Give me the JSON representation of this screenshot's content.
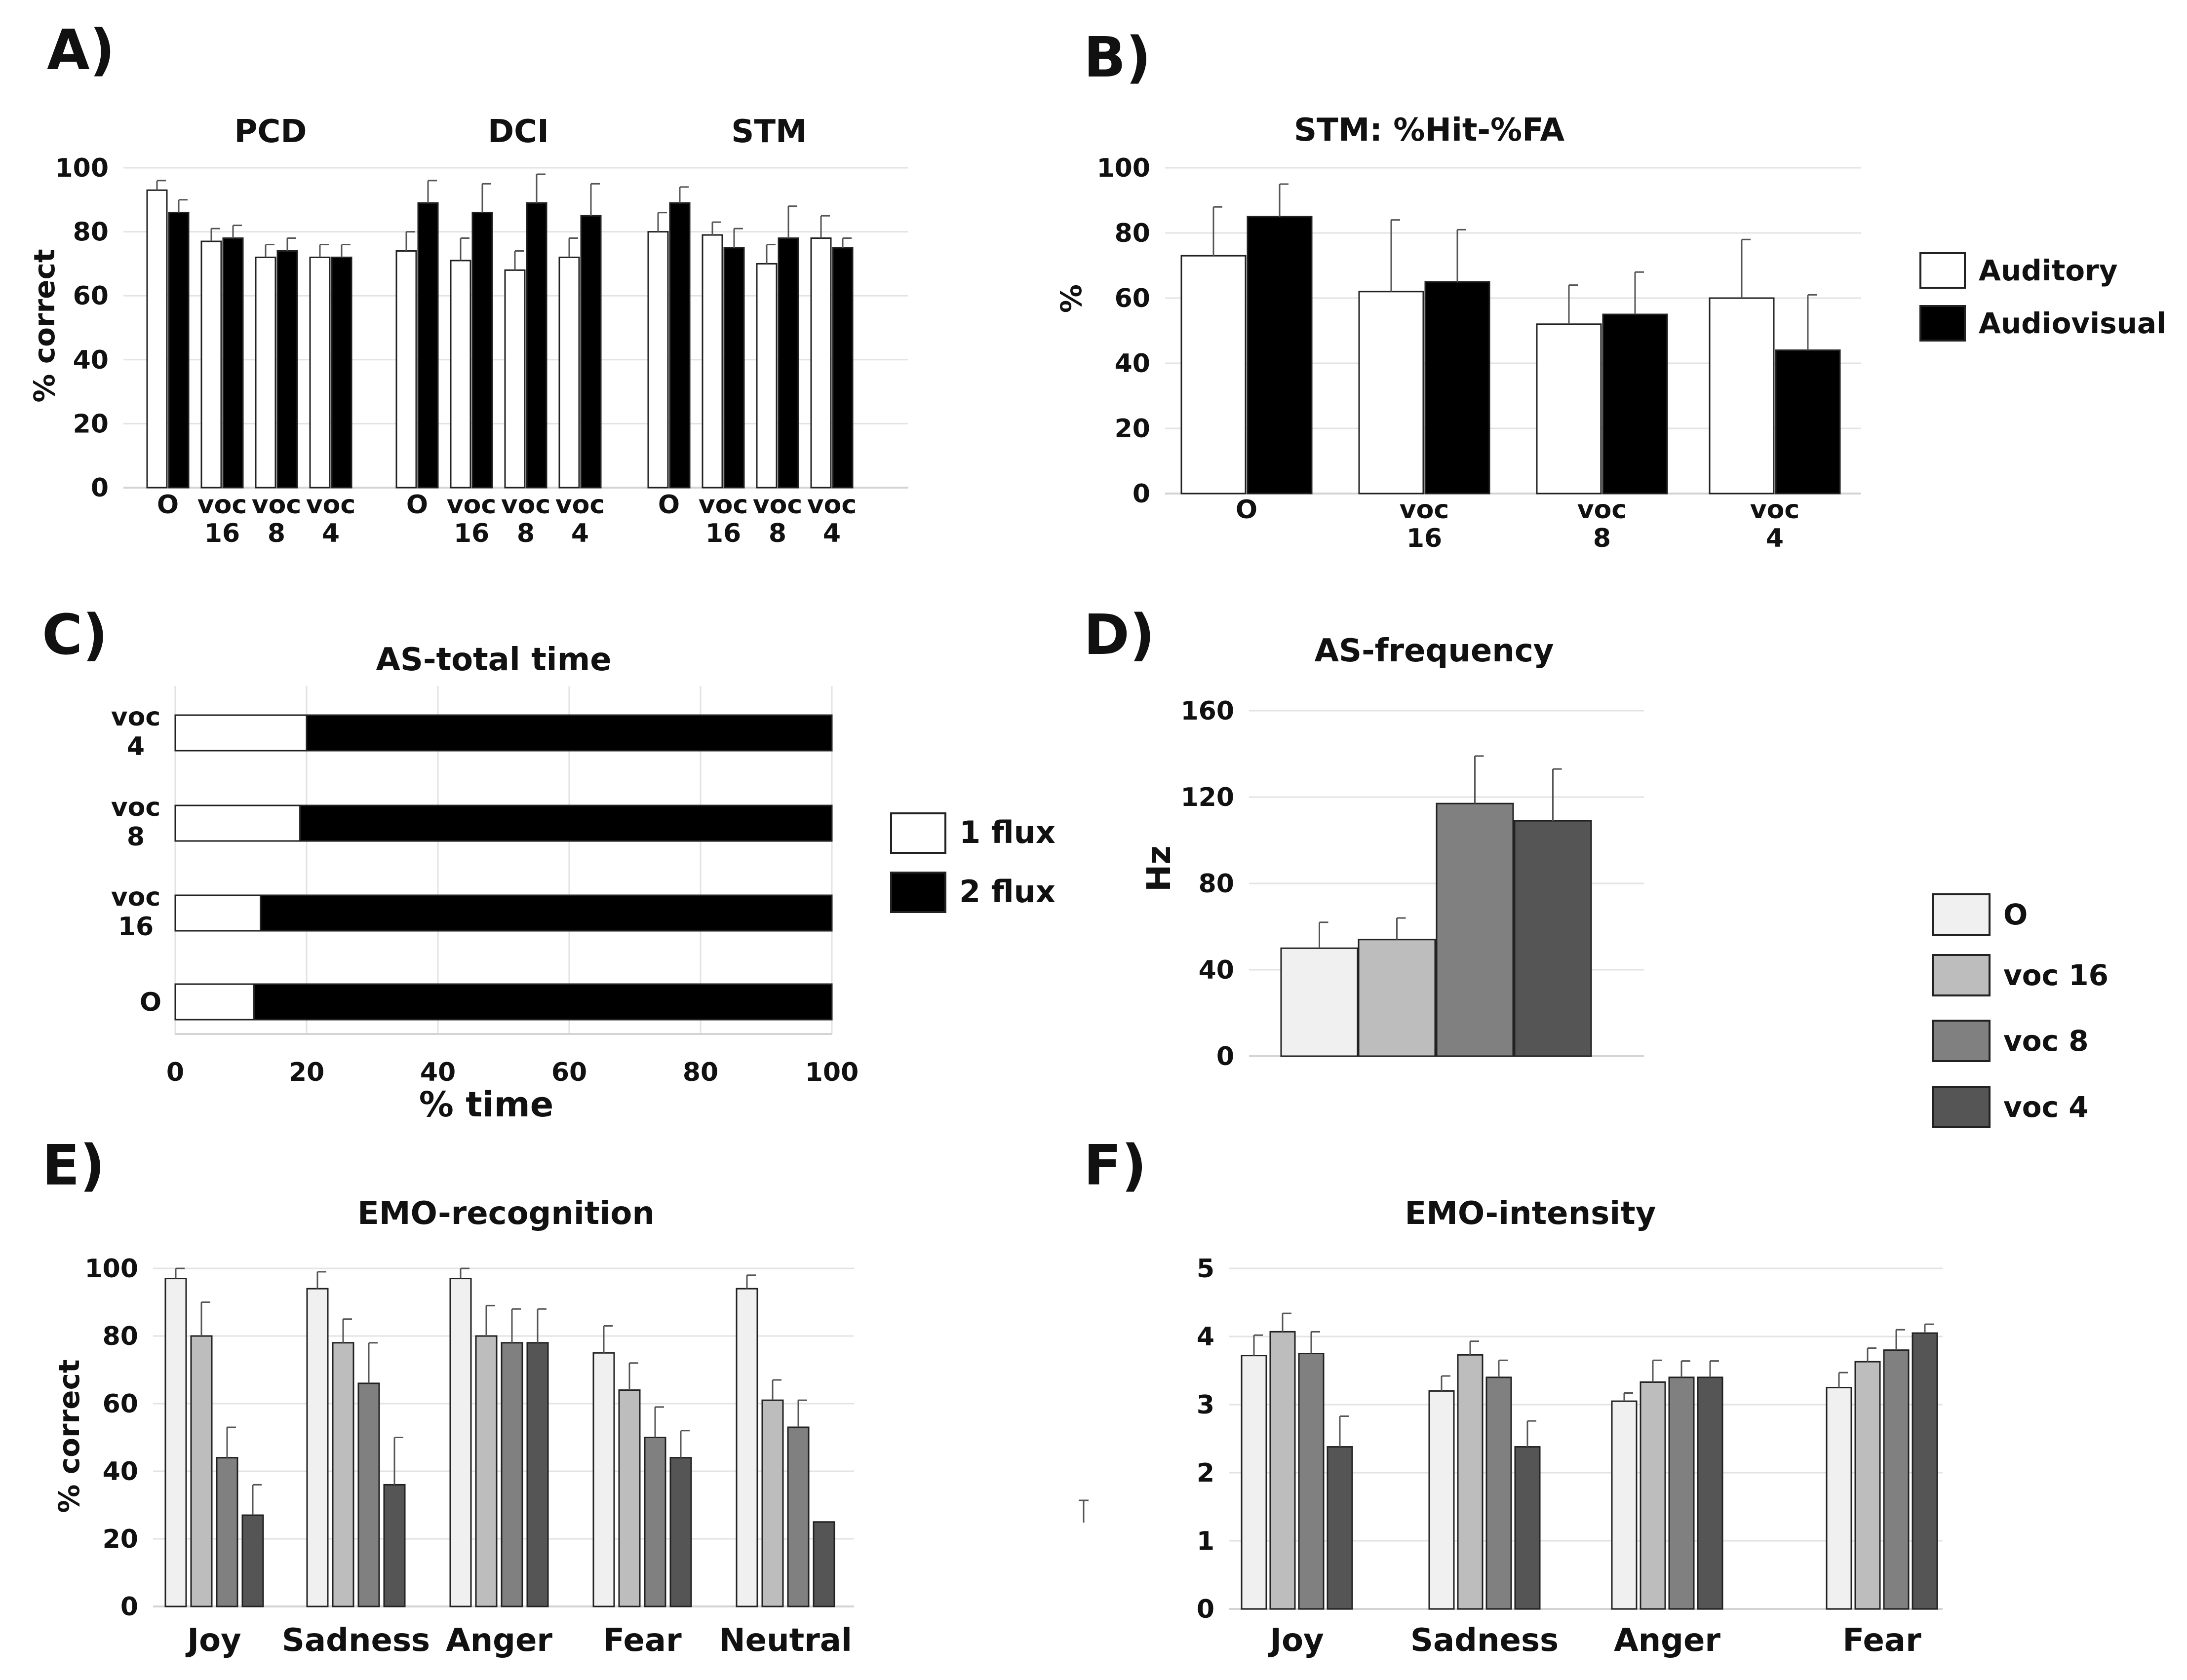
{
  "panels": {
    "A": {
      "label": "A)",
      "chart_data": {
        "type": "bar",
        "groups": [
          "PCD",
          "DCI",
          "STM"
        ],
        "categories": [
          "O",
          "voc 16",
          "voc 8",
          "voc 4"
        ],
        "ylabel": "% correct",
        "ylim": [
          0,
          100
        ],
        "yticks": [
          0,
          20,
          40,
          60,
          80,
          100
        ],
        "grid": true,
        "series": [
          {
            "name": "Auditory",
            "color": "#ffffff",
            "values": [
              [
                93,
                77,
                72,
                72
              ],
              [
                74,
                71,
                68,
                72
              ],
              [
                80,
                79,
                70,
                78
              ]
            ],
            "errors": [
              [
                3,
                4,
                4,
                4
              ],
              [
                6,
                7,
                6,
                6
              ],
              [
                6,
                4,
                6,
                7
              ]
            ]
          },
          {
            "name": "Audiovisual",
            "color": "#000000",
            "values": [
              [
                86,
                78,
                74,
                72
              ],
              [
                89,
                86,
                89,
                85
              ],
              [
                89,
                75,
                78,
                75
              ]
            ],
            "errors": [
              [
                4,
                4,
                4,
                4
              ],
              [
                7,
                9,
                9,
                10
              ],
              [
                5,
                6,
                10,
                3
              ]
            ]
          }
        ]
      }
    },
    "B": {
      "label": "B)",
      "chart_data": {
        "type": "bar",
        "title": "STM: %Hit-%FA",
        "categories": [
          "O",
          "voc 16",
          "voc 8",
          "voc 4"
        ],
        "ylabel": "%",
        "ylim": [
          0,
          100
        ],
        "yticks": [
          0,
          20,
          40,
          60,
          80,
          100
        ],
        "grid": true,
        "legend": "right",
        "series": [
          {
            "name": "Auditory",
            "color": "#ffffff",
            "values": [
              73,
              62,
              52,
              60
            ],
            "errors": [
              15,
              22,
              12,
              18
            ]
          },
          {
            "name": "Audiovisual",
            "color": "#000000",
            "values": [
              85,
              65,
              55,
              44
            ],
            "errors": [
              10,
              16,
              13,
              17
            ]
          }
        ]
      }
    },
    "C": {
      "label": "C)",
      "chart_data": {
        "type": "bar",
        "orientation": "horizontal",
        "stacked": true,
        "title": "AS-total time",
        "categories": [
          "voc 4",
          "voc 8",
          "voc 16",
          "O"
        ],
        "xlabel": "% time",
        "xlim": [
          0,
          100
        ],
        "xticks": [
          0,
          20,
          40,
          60,
          80,
          100
        ],
        "grid": true,
        "legend": "right",
        "series": [
          {
            "name": "1 flux",
            "color": "#ffffff",
            "values": [
              20,
              19,
              13,
              12
            ]
          },
          {
            "name": "2 flux",
            "color": "#000000",
            "values": [
              80,
              81,
              87,
              88
            ]
          }
        ]
      }
    },
    "D": {
      "label": "D)",
      "chart_data": {
        "type": "bar",
        "title": "AS-frequency",
        "categories": [
          "O",
          "voc 16",
          "voc 8",
          "voc 4"
        ],
        "ylabel": "Hz",
        "ylim": [
          0,
          160
        ],
        "yticks": [
          0,
          40,
          80,
          120,
          160
        ],
        "grid": true,
        "legend": "right",
        "series": [
          {
            "name": "O",
            "color": "#f0f0f0",
            "value": 50,
            "error": 12
          },
          {
            "name": "voc 16",
            "color": "#bdbdbd",
            "value": 54,
            "error": 10
          },
          {
            "name": "voc 8",
            "color": "#808080",
            "value": 117,
            "error": 22
          },
          {
            "name": "voc 4",
            "color": "#555555",
            "value": 109,
            "error": 24
          }
        ]
      }
    },
    "E": {
      "label": "E)",
      "chart_data": {
        "type": "bar",
        "title": "EMO-recognition",
        "categories": [
          "Joy",
          "Sadness",
          "Anger",
          "Fear",
          "Neutral"
        ],
        "ylabel": "% correct",
        "ylim": [
          0,
          100
        ],
        "yticks": [
          0,
          20,
          40,
          60,
          80,
          100
        ],
        "grid": true,
        "series": [
          {
            "name": "O",
            "color": "#f0f0f0",
            "values": [
              97,
              94,
              97,
              75,
              94
            ],
            "errors": [
              3,
              5,
              3,
              8,
              4
            ]
          },
          {
            "name": "voc 16",
            "color": "#bdbdbd",
            "values": [
              80,
              78,
              80,
              64,
              61
            ],
            "errors": [
              10,
              7,
              9,
              8,
              6
            ]
          },
          {
            "name": "voc 8",
            "color": "#808080",
            "values": [
              44,
              66,
              78,
              50,
              53
            ],
            "errors": [
              9,
              12,
              10,
              9,
              8
            ]
          },
          {
            "name": "voc 4",
            "color": "#555555",
            "values": [
              27,
              36,
              78,
              44,
              25
            ],
            "errors": [
              9,
              14,
              10,
              8,
              0
            ]
          }
        ]
      }
    },
    "F": {
      "label": "F)",
      "chart_data": {
        "type": "bar",
        "title": "EMO-intensity",
        "categories": [
          "Joy",
          "Sadness",
          "Anger",
          "Fear"
        ],
        "ylim": [
          0,
          5
        ],
        "yticks": [
          0,
          1,
          2,
          3,
          4,
          5
        ],
        "grid": true,
        "series": [
          {
            "name": "O",
            "color": "#f0f0f0",
            "values": [
              3.72,
              3.2,
              3.05,
              3.25
            ],
            "errors": [
              0.3,
              0.22,
              0.12,
              0.22
            ]
          },
          {
            "name": "voc 16",
            "color": "#bdbdbd",
            "values": [
              4.07,
              3.73,
              3.33,
              3.63
            ],
            "errors": [
              0.27,
              0.2,
              0.32,
              0.2
            ]
          },
          {
            "name": "voc 8",
            "color": "#808080",
            "values": [
              3.75,
              3.4,
              3.4,
              3.8
            ],
            "errors": [
              0.32,
              0.25,
              0.24,
              0.3
            ]
          },
          {
            "name": "voc 4",
            "color": "#555555",
            "values": [
              2.38,
              2.38,
              3.4,
              4.05
            ],
            "errors": [
              0.45,
              0.38,
              0.24,
              0.13
            ]
          }
        ]
      }
    }
  }
}
